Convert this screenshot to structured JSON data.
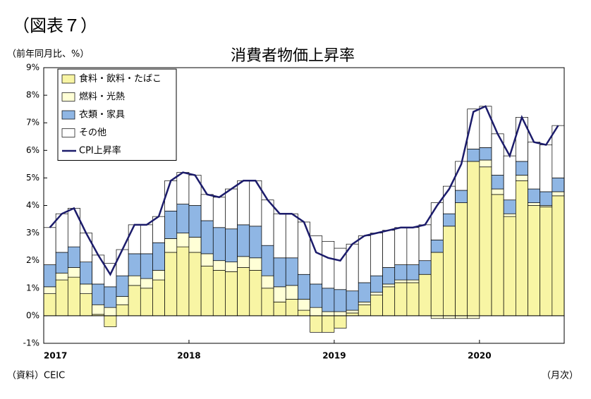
{
  "header": "（図表７）",
  "chart_data": {
    "type": "bar",
    "stacked": true,
    "title": "消費者物価上昇率",
    "y_label": "（前年同月比、%）",
    "source": "（資料）CEIC",
    "x_label": "（月次）",
    "categories": [
      "2017",
      null,
      null,
      null,
      null,
      null,
      null,
      null,
      null,
      null,
      null,
      null,
      "2018",
      null,
      null,
      null,
      null,
      null,
      null,
      null,
      null,
      null,
      null,
      null,
      "2019",
      null,
      null,
      null,
      null,
      null,
      null,
      null,
      null,
      null,
      null,
      null,
      "2020",
      null,
      null,
      null,
      null,
      null,
      null
    ],
    "series": [
      {
        "name": "食料・飲料・たばこ",
        "color": "#f8f5a4",
        "values": [
          0.8,
          1.3,
          1.4,
          0.8,
          0.05,
          -0.4,
          0.4,
          1.1,
          1.0,
          1.3,
          2.3,
          2.5,
          2.3,
          1.8,
          1.65,
          1.6,
          1.75,
          1.65,
          1.0,
          0.5,
          0.6,
          0.2,
          -0.6,
          -0.6,
          -0.45,
          0.1,
          0.4,
          0.75,
          1.05,
          1.2,
          1.2,
          1.5,
          2.3,
          3.25,
          4.1,
          5.6,
          5.4,
          4.4,
          3.6,
          4.9,
          4.0,
          3.95,
          4.35
        ]
      },
      {
        "name": "燃料・光熱",
        "color": "#ffffd6",
        "values": [
          0.25,
          0.25,
          0.35,
          0.35,
          0.35,
          0.3,
          0.3,
          0.35,
          0.35,
          0.35,
          0.5,
          0.5,
          0.55,
          0.45,
          0.35,
          0.35,
          0.4,
          0.45,
          0.45,
          0.55,
          0.5,
          0.4,
          0.3,
          0.15,
          0.15,
          0.1,
          0.1,
          0.1,
          0.1,
          0.1,
          0.1,
          0,
          -0.1,
          -0.1,
          -0.1,
          -0.1,
          0.25,
          0.2,
          0.1,
          0.2,
          0.1,
          0.05,
          0.15
        ]
      },
      {
        "name": "衣類・家具",
        "color": "#8fb6e4",
        "values": [
          0.8,
          0.75,
          0.75,
          0.8,
          0.75,
          0.75,
          0.75,
          0.8,
          0.9,
          1.0,
          1.0,
          1.05,
          1.15,
          1.2,
          1.2,
          1.2,
          1.15,
          1.15,
          1.1,
          1.05,
          1.0,
          0.9,
          0.85,
          0.85,
          0.8,
          0.7,
          0.7,
          0.6,
          0.6,
          0.55,
          0.55,
          0.5,
          0.45,
          0.45,
          0.45,
          0.45,
          0.45,
          0.5,
          0.5,
          0.5,
          0.5,
          0.5,
          0.5
        ]
      },
      {
        "name": "その他",
        "color": "#ffffff",
        "values": [
          1.35,
          1.4,
          1.4,
          1.05,
          1.05,
          0.85,
          0.95,
          1.05,
          1.05,
          0.95,
          1.1,
          1.15,
          1.1,
          0.95,
          1.1,
          1.45,
          1.6,
          1.65,
          1.65,
          1.6,
          1.6,
          1.9,
          1.75,
          1.7,
          1.5,
          1.7,
          1.7,
          1.55,
          1.35,
          1.35,
          1.35,
          1.3,
          1.35,
          1.0,
          1.05,
          1.45,
          1.5,
          1.5,
          1.6,
          1.6,
          1.7,
          1.7,
          1.9
        ]
      },
      {
        "name": "CPI上昇率",
        "type": "line",
        "color": "#1c1c6b",
        "values": [
          3.2,
          3.7,
          3.9,
          3.0,
          2.2,
          1.5,
          2.4,
          3.3,
          3.3,
          3.6,
          4.9,
          5.2,
          5.1,
          4.4,
          4.3,
          4.6,
          4.9,
          4.9,
          4.2,
          3.7,
          3.7,
          3.4,
          2.3,
          2.1,
          2.0,
          2.6,
          2.9,
          3.0,
          3.1,
          3.2,
          3.2,
          3.3,
          4.0,
          4.6,
          5.5,
          7.4,
          7.6,
          6.6,
          5.8,
          7.2,
          6.3,
          6.2,
          6.9
        ]
      }
    ],
    "ylim": [
      -1,
      9
    ],
    "yticks": [
      {
        "value": -1,
        "label": "-1%"
      },
      {
        "value": 0,
        "label": "0%"
      },
      {
        "value": 1,
        "label": "1%"
      },
      {
        "value": 2,
        "label": "2%"
      },
      {
        "value": 3,
        "label": "3%"
      },
      {
        "value": 4,
        "label": "4%"
      },
      {
        "value": 5,
        "label": "5%"
      },
      {
        "value": 6,
        "label": "6%"
      },
      {
        "value": 7,
        "label": "7%"
      },
      {
        "value": 8,
        "label": "8%"
      },
      {
        "value": 9,
        "label": "9%"
      }
    ],
    "grid": false,
    "legend": "upper left"
  }
}
